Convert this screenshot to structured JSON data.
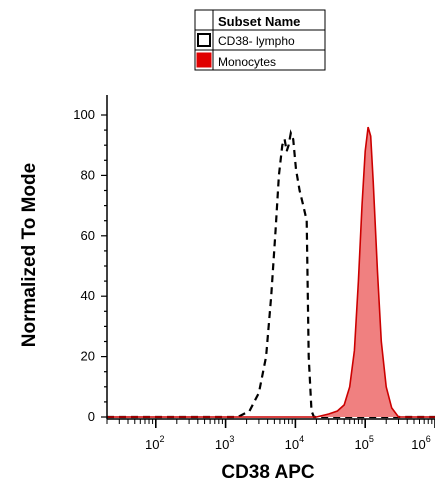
{
  "chart_data": {
    "type": "area",
    "xlabel": "CD38 APC",
    "ylabel": "Normalized To Mode",
    "xscale": "log",
    "xlim": [
      20,
      1000000
    ],
    "ylim": [
      0,
      100
    ],
    "yticks": [
      0,
      20,
      40,
      60,
      80,
      100
    ],
    "xticks": [
      {
        "value": 100,
        "base": "10",
        "exp": "2"
      },
      {
        "value": 1000,
        "base": "10",
        "exp": "3"
      },
      {
        "value": 10000,
        "base": "10",
        "exp": "4"
      },
      {
        "value": 100000,
        "base": "10",
        "exp": "5"
      },
      {
        "value": 1000000,
        "base": "10",
        "exp": "6"
      }
    ],
    "legend": {
      "title": "Subset Name",
      "position": "top"
    },
    "series": [
      {
        "name": "CD38- lympho",
        "style": "dashed",
        "color": "#000000",
        "fill": "none",
        "points": [
          [
            20,
            0
          ],
          [
            1500,
            0
          ],
          [
            2200,
            2
          ],
          [
            3000,
            8
          ],
          [
            3800,
            20
          ],
          [
            4500,
            40
          ],
          [
            5200,
            62
          ],
          [
            5800,
            80
          ],
          [
            6500,
            90
          ],
          [
            7000,
            92
          ],
          [
            7500,
            88
          ],
          [
            8000,
            90
          ],
          [
            8600,
            94
          ],
          [
            9300,
            92
          ],
          [
            10200,
            82
          ],
          [
            11500,
            75
          ],
          [
            13000,
            70
          ],
          [
            14500,
            65
          ],
          [
            15500,
            20
          ],
          [
            17000,
            2
          ],
          [
            18500,
            0
          ],
          [
            1000000,
            0
          ]
        ]
      },
      {
        "name": "Monocytes",
        "style": "solid",
        "color": "#cc0000",
        "fill": "#f08080",
        "points": [
          [
            20,
            0
          ],
          [
            20000,
            0
          ],
          [
            30000,
            1
          ],
          [
            40000,
            2
          ],
          [
            50000,
            4
          ],
          [
            60000,
            10
          ],
          [
            70000,
            22
          ],
          [
            80000,
            45
          ],
          [
            90000,
            70
          ],
          [
            100000,
            88
          ],
          [
            110000,
            96
          ],
          [
            120000,
            93
          ],
          [
            130000,
            78
          ],
          [
            150000,
            48
          ],
          [
            170000,
            25
          ],
          [
            200000,
            10
          ],
          [
            240000,
            3
          ],
          [
            300000,
            0
          ],
          [
            1000000,
            0
          ]
        ]
      }
    ]
  }
}
